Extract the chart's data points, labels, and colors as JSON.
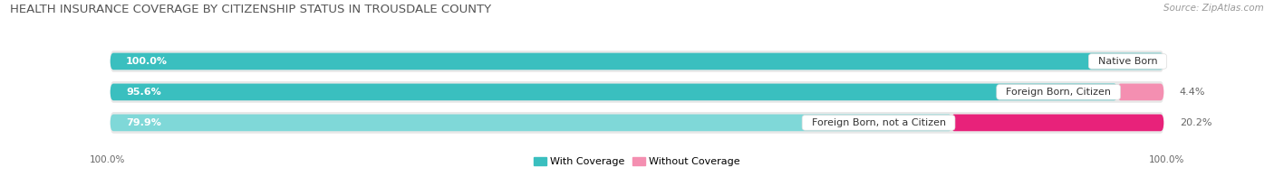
{
  "title": "HEALTH INSURANCE COVERAGE BY CITIZENSHIP STATUS IN TROUSDALE COUNTY",
  "source": "Source: ZipAtlas.com",
  "categories": [
    "Native Born",
    "Foreign Born, Citizen",
    "Foreign Born, not a Citizen"
  ],
  "with_coverage": [
    100.0,
    95.6,
    79.9
  ],
  "without_coverage": [
    0.0,
    4.4,
    20.2
  ],
  "color_with_rows": [
    "#3abfbf",
    "#3abfbf",
    "#7fd8d8"
  ],
  "color_without_rows": [
    "#f48fb1",
    "#f48fb1",
    "#e8227a"
  ],
  "color_legend_with": "#3abfbf",
  "color_legend_without": "#f48fb1",
  "background_bar": "#e8e8e8",
  "background_fig": "#ffffff",
  "legend_with": "With Coverage",
  "legend_without": "Without Coverage",
  "title_fontsize": 9.5,
  "source_fontsize": 7.5,
  "bar_label_fontsize": 8,
  "category_fontsize": 8,
  "tick_fontsize": 7.5
}
